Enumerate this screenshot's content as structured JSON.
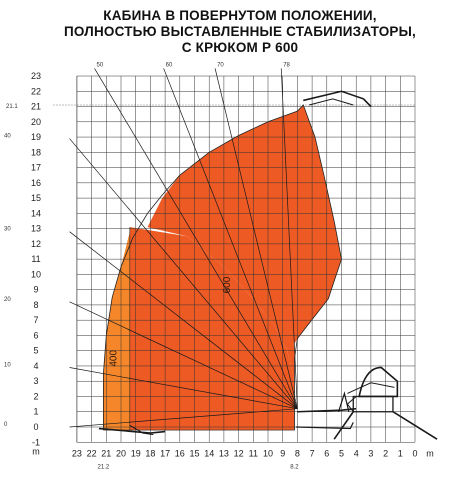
{
  "title_lines": [
    "КАБИНА В ПОВЕРНУТОМ ПОЛОЖЕНИИ,",
    "ПОЛНОСТЬЮ ВЫСТАВЛЕННЫЕ СТАБИЛИЗАТОРЫ,",
    "С КРЮКОМ Р 600"
  ],
  "y_axis": {
    "ticks": [
      "23",
      "22",
      "21",
      "20",
      "19",
      "18",
      "17",
      "16",
      "15",
      "14",
      "13",
      "12",
      "11",
      "10",
      "9",
      "8",
      "7",
      "6",
      "5",
      "4",
      "3",
      "2",
      "1",
      "0",
      "-1"
    ],
    "unit": "m"
  },
  "x_axis": {
    "ticks": [
      "23",
      "22",
      "21",
      "20",
      "19",
      "18",
      "17",
      "16",
      "15",
      "14",
      "13",
      "12",
      "11",
      "10",
      "9",
      "8",
      "7",
      "6",
      "5",
      "4",
      "3",
      "2",
      "1",
      "0"
    ],
    "unit": "m"
  },
  "zones": [
    {
      "label": "400",
      "color": "#f5872a"
    },
    {
      "label": "600",
      "color": "#ee5a24"
    }
  ],
  "angle_labels": [
    "0",
    "10",
    "20",
    "30",
    "40",
    "50",
    "60",
    "70",
    "78"
  ],
  "markers": {
    "left_height": "21.1",
    "bottom_reach": "21.2",
    "bottom_min": "8.2"
  },
  "colors": {
    "grid": "#333333",
    "zone_400": "#f5872a",
    "zone_600": "#ee5a24",
    "outline": "#222222"
  }
}
